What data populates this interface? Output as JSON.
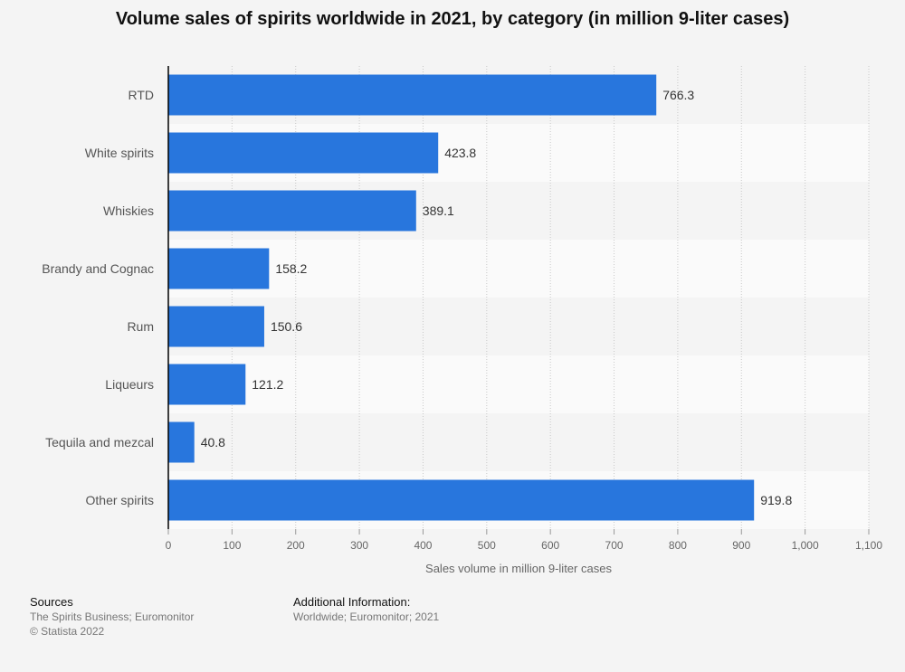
{
  "chart_data": {
    "type": "bar",
    "orientation": "horizontal",
    "title": "Volume sales of spirits worldwide in 2021, by category (in million 9-liter cases)",
    "categories": [
      "RTD",
      "White spirits",
      "Whiskies",
      "Brandy and Cognac",
      "Rum",
      "Liqueurs",
      "Tequila and mezcal",
      "Other spirits"
    ],
    "values": [
      766.3,
      423.8,
      389.1,
      158.2,
      150.6,
      121.2,
      40.8,
      919.8
    ],
    "value_labels": [
      "766.3",
      "423.8",
      "389.1",
      "158.2",
      "150.6",
      "121.2",
      "40.8",
      "919.8"
    ],
    "xlabel": "Sales volume in million 9-liter cases",
    "ylabel": "",
    "xlim": [
      0,
      1100
    ],
    "ticks": [
      0,
      100,
      200,
      300,
      400,
      500,
      600,
      700,
      800,
      900,
      1000,
      1100
    ],
    "tick_labels": [
      "0",
      "100",
      "200",
      "300",
      "400",
      "500",
      "600",
      "700",
      "800",
      "900",
      "1,000",
      "1,100"
    ],
    "grid": true,
    "bar_color": "#2876dd"
  },
  "footer": {
    "sources_heading": "Sources",
    "sources_line1": "The Spirits Business; Euromonitor",
    "sources_line2": "© Statista 2022",
    "additional_heading": "Additional Information:",
    "additional_line1": "Worldwide; Euromonitor; 2021"
  }
}
